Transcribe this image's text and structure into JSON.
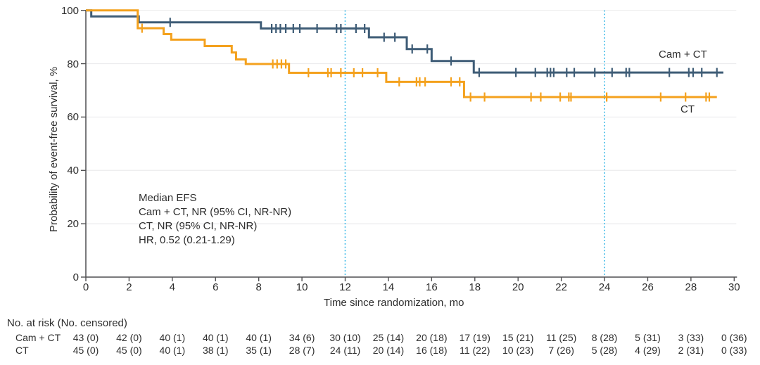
{
  "chart_data": {
    "type": "line",
    "subtype": "kaplan-meier-step",
    "title": "",
    "xlabel": "Time since randomization, mo",
    "ylabel": "Probability of event-free survival, %",
    "xlim": [
      0,
      30
    ],
    "ylim": [
      0,
      100
    ],
    "xticks": [
      0,
      2,
      4,
      6,
      8,
      10,
      12,
      14,
      16,
      18,
      20,
      22,
      24,
      26,
      28,
      30
    ],
    "yticks": [
      0,
      20,
      40,
      60,
      80,
      100
    ],
    "grid": "horizontal-light",
    "reference_lines_x": [
      12,
      24
    ],
    "reference_line_color": "#41bbe8",
    "axis_color": "#4f4f51",
    "grid_color": "#ebebed",
    "annotation": {
      "line1": "Median EFS",
      "line2": "Cam + CT, NR (95% CI, NR-NR)",
      "line3": "CT, NR (95% CI, NR-NR)",
      "line4": "HR, 0.52 (0.21-1.29)"
    },
    "series": [
      {
        "name": "Cam + CT",
        "color": "#3e5c76",
        "end_time": 29.5,
        "steps": [
          [
            0,
            100
          ],
          [
            0.25,
            97.7
          ],
          [
            2.45,
            95.5
          ],
          [
            8.1,
            93.2
          ],
          [
            13.1,
            89.9
          ],
          [
            14.85,
            85.5
          ],
          [
            16.0,
            81.0
          ],
          [
            17.95,
            76.7
          ]
        ],
        "censor_times": [
          3.9,
          8.6,
          8.8,
          9.0,
          9.25,
          9.6,
          9.9,
          10.7,
          11.6,
          11.8,
          12.5,
          12.9,
          13.8,
          14.3,
          15.1,
          15.8,
          16.9,
          18.2,
          19.9,
          20.8,
          21.35,
          21.5,
          21.65,
          22.25,
          22.6,
          23.55,
          24.35,
          25.0,
          25.15,
          27.0,
          27.9,
          28.1,
          28.5,
          29.2
        ]
      },
      {
        "name": "CT",
        "color": "#f4a11d",
        "end_time": 29.2,
        "steps": [
          [
            0,
            100
          ],
          [
            2.4,
            93.3
          ],
          [
            3.6,
            91.1
          ],
          [
            3.95,
            89.0
          ],
          [
            5.5,
            86.6
          ],
          [
            6.75,
            84.2
          ],
          [
            6.95,
            81.6
          ],
          [
            7.4,
            79.9
          ],
          [
            9.4,
            76.6
          ],
          [
            13.9,
            73.2
          ],
          [
            17.5,
            67.5
          ]
        ],
        "censor_times": [
          2.6,
          8.65,
          8.85,
          9.05,
          9.25,
          10.3,
          11.2,
          11.35,
          11.8,
          12.4,
          12.8,
          13.5,
          14.5,
          15.3,
          15.45,
          15.7,
          16.9,
          17.3,
          17.8,
          18.45,
          20.6,
          21.05,
          21.95,
          22.35,
          22.45,
          24.1,
          26.6,
          27.75,
          28.7,
          28.85
        ]
      }
    ]
  },
  "risk_table": {
    "header": "No. at risk (No. censored)",
    "rows": [
      {
        "label": "Cam + CT",
        "values": [
          "43 (0)",
          "42 (0)",
          "40 (1)",
          "40 (1)",
          "40 (1)",
          "34 (6)",
          "30 (10)",
          "25 (14)",
          "20 (18)",
          "17 (19)",
          "15 (21)",
          "11 (25)",
          "8 (28)",
          "5 (31)",
          "3 (33)",
          "0 (36)"
        ]
      },
      {
        "label": "CT",
        "values": [
          "45 (0)",
          "45 (0)",
          "40 (1)",
          "38 (1)",
          "35 (1)",
          "28 (7)",
          "24 (11)",
          "20 (14)",
          "16 (18)",
          "11 (22)",
          "10 (23)",
          "7 (26)",
          "5 (28)",
          "4 (29)",
          "2 (31)",
          "0 (33)"
        ]
      }
    ]
  }
}
